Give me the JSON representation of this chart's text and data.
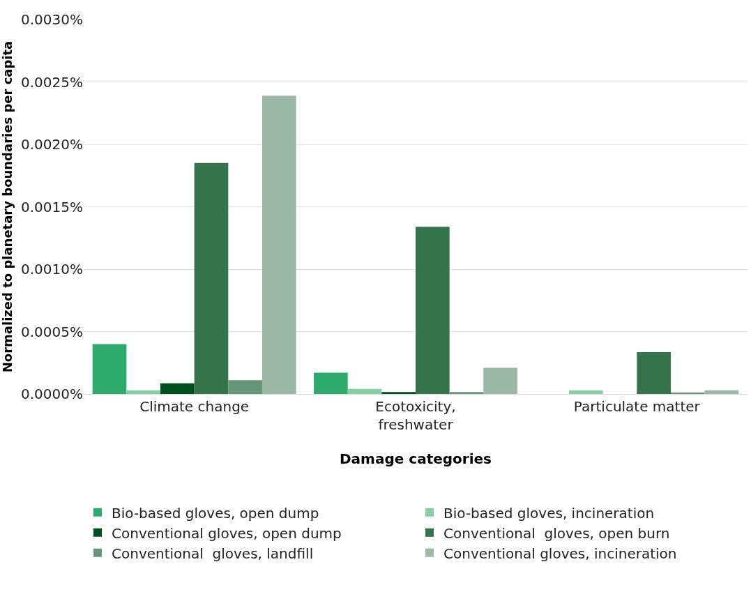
{
  "chart_data": {
    "type": "bar",
    "xlabel": "Damage categories",
    "ylabel": "Normalized to planetary boundaries per capita",
    "categories": [
      "Climate change",
      "Ecotoxicity,\nfreshwater",
      "Particulate matter"
    ],
    "series": [
      {
        "name": "Bio-based gloves, open dump",
        "color": "#2eaa6c",
        "values": [
          0.0004,
          0.00017,
          0
        ]
      },
      {
        "name": "Bio-based gloves, incineration",
        "color": "#84cfa5",
        "values": [
          3e-05,
          4e-05,
          3e-05
        ]
      },
      {
        "name": "Conventional gloves, open dump",
        "color": "#00501f",
        "values": [
          8.5e-05,
          1.5e-05,
          0
        ]
      },
      {
        "name": "Conventional  gloves, open burn",
        "color": "#35734b",
        "values": [
          0.00185,
          0.00134,
          0.000335
        ]
      },
      {
        "name": "Conventional  gloves, landfill",
        "color": "#659677",
        "values": [
          0.00011,
          1.5e-05,
          1e-05
        ]
      },
      {
        "name": "Conventional gloves, incineration",
        "color": "#9ab8a4",
        "values": [
          0.00239,
          0.00021,
          3e-05
        ]
      }
    ],
    "ylim": [
      0,
      0.003
    ],
    "yticks": [
      {
        "value": 0,
        "label": "0.0000%"
      },
      {
        "value": 0.0005,
        "label": "0.0005%"
      },
      {
        "value": 0.001,
        "label": "0.0010%"
      },
      {
        "value": 0.0015,
        "label": "0.0015%"
      },
      {
        "value": 0.002,
        "label": "0.0020%"
      },
      {
        "value": 0.0025,
        "label": "0.0025%"
      },
      {
        "value": 0.003,
        "label": "0.0030%"
      }
    ],
    "grid": "y",
    "legend": "bottom"
  }
}
